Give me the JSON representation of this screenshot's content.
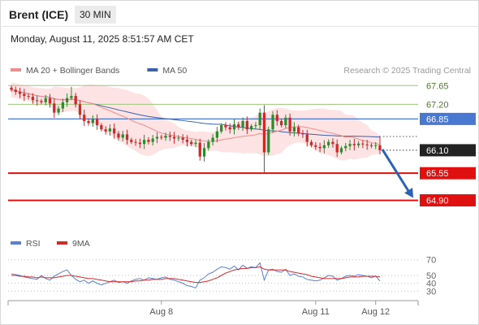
{
  "header": {
    "instrument": "Brent (ICE)",
    "timeframe": "30 MIN",
    "datetime": "Monday, August 11, 2025 8:51:57 AM CET"
  },
  "colors": {
    "ma20": "#f08c8c",
    "ma50": "#3b5fa8",
    "band": "#fde3e3",
    "resistance": "#9cc87a",
    "pivot": "#4a78d0",
    "support": "#e01010",
    "candle_up": "#2d8a2d",
    "candle_down": "#c92a2a",
    "rsi": "#5b7fd4",
    "rsi_ma": "#d22b2b",
    "arrow": "#2a62b5",
    "current_price_tag": "#222222"
  },
  "chart_data": [
    {
      "type": "candlestick",
      "legend": [
        {
          "label": "MA 20 + Bollinger Bands",
          "color": "#f08c8c"
        },
        {
          "label": "MA 50",
          "color": "#3b5fa8"
        }
      ],
      "credit": "Research © 2025 Trading Central",
      "ylim": [
        64.6,
        67.85
      ],
      "x_ticks": [
        {
          "label": "Aug 8",
          "index": 35
        },
        {
          "label": "Aug 11",
          "index": 71
        },
        {
          "label": "Aug 12",
          "index": 85
        }
      ],
      "levels": [
        {
          "label": "67.65",
          "value": 67.65,
          "role": "resistance"
        },
        {
          "label": "67.20",
          "value": 67.2,
          "role": "resistance"
        },
        {
          "label": "66.85",
          "value": 66.85,
          "role": "pivot"
        },
        {
          "label": "66.10",
          "value": 66.1,
          "role": "current"
        },
        {
          "label": "65.55",
          "value": 65.55,
          "role": "support"
        },
        {
          "label": "64.90",
          "value": 64.9,
          "role": "support"
        }
      ],
      "forecast_arrow": {
        "from": 66.12,
        "to": 64.96
      },
      "closes": [
        67.55,
        67.5,
        67.45,
        67.4,
        67.38,
        67.3,
        67.28,
        67.25,
        67.35,
        67.22,
        67.0,
        67.1,
        67.25,
        67.35,
        67.4,
        67.2,
        66.95,
        66.8,
        66.75,
        66.85,
        66.7,
        66.6,
        66.55,
        66.62,
        66.5,
        66.4,
        66.48,
        66.35,
        66.3,
        66.28,
        66.25,
        66.35,
        66.3,
        66.38,
        66.42,
        66.4,
        66.45,
        66.42,
        66.38,
        66.4,
        66.35,
        66.3,
        66.25,
        66.28,
        65.95,
        66.15,
        66.3,
        66.4,
        66.55,
        66.7,
        66.65,
        66.6,
        66.72,
        66.65,
        66.8,
        66.6,
        66.68,
        66.7,
        67.0,
        66.05,
        66.6,
        66.95,
        66.8,
        66.7,
        66.88,
        66.55,
        66.65,
        66.5,
        66.48,
        66.3,
        66.22,
        66.18,
        66.15,
        66.22,
        66.3,
        66.25,
        66.05,
        66.15,
        66.2,
        66.25,
        66.22,
        66.26,
        66.24,
        66.22,
        66.2,
        66.22,
        66.1
      ]
    },
    {
      "type": "line",
      "legend": [
        {
          "label": "RSI",
          "color": "#5b7fd4"
        },
        {
          "label": "9MA",
          "color": "#d22b2b"
        }
      ],
      "ylim": [
        22,
        78
      ],
      "y_ticks": [
        {
          "label": "70",
          "value": 70
        },
        {
          "label": "50",
          "value": 50
        },
        {
          "label": "40",
          "value": 40
        },
        {
          "label": "30",
          "value": 30
        }
      ],
      "series": [
        {
          "name": "RSI",
          "values": [
            52,
            51,
            50,
            48,
            47,
            46,
            45,
            50,
            46,
            44,
            49,
            52,
            55,
            57,
            50,
            45,
            42,
            44,
            40,
            43,
            40,
            38,
            40,
            42,
            44,
            41,
            42,
            40,
            43,
            45,
            46,
            44,
            47,
            46,
            45,
            47,
            48,
            45,
            44,
            42,
            40,
            37,
            36,
            34,
            44,
            47,
            52,
            54,
            58,
            61,
            60,
            58,
            62,
            57,
            63,
            59,
            61,
            60,
            66,
            44,
            57,
            58,
            55,
            54,
            58,
            50,
            52,
            49,
            48,
            45,
            44,
            43,
            44,
            47,
            50,
            49,
            44,
            46,
            49,
            50,
            49,
            51,
            50,
            49,
            47,
            49,
            43
          ]
        },
        {
          "name": "9MA",
          "values": [
            50,
            50,
            49,
            49,
            48,
            48,
            47,
            48,
            47,
            47,
            47,
            48,
            49,
            50,
            50,
            49,
            48,
            47,
            46,
            46,
            45,
            44,
            43,
            42,
            42,
            42,
            42,
            42,
            42,
            43,
            43,
            44,
            44,
            45,
            45,
            45,
            46,
            46,
            46,
            45,
            44,
            43,
            42,
            41,
            41,
            42,
            43,
            45,
            47,
            50,
            53,
            55,
            57,
            58,
            59,
            59,
            60,
            60,
            61,
            58,
            57,
            57,
            57,
            57,
            57,
            55,
            54,
            53,
            52,
            51,
            49,
            48,
            47,
            46,
            46,
            46,
            46,
            46,
            47,
            48,
            48,
            48,
            49,
            49,
            49,
            49,
            48
          ]
        }
      ]
    }
  ]
}
